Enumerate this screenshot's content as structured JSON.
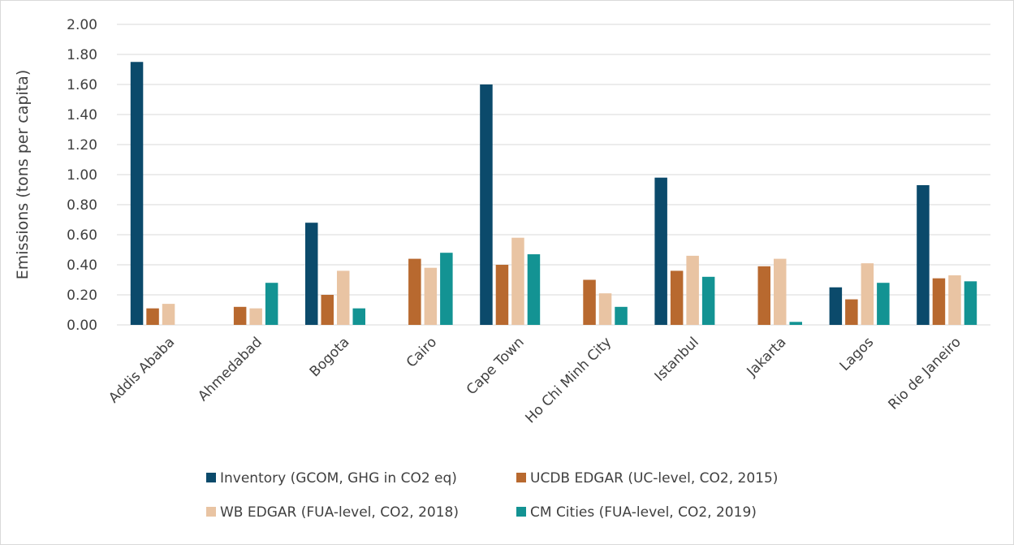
{
  "chart_data": {
    "type": "bar",
    "title": "",
    "xlabel": "",
    "ylabel": "Emissions (tons per capita)",
    "ylim": [
      0,
      2.0
    ],
    "y_ticks": [
      "0.00",
      "0.20",
      "0.40",
      "0.60",
      "0.80",
      "1.00",
      "1.20",
      "1.40",
      "1.60",
      "1.80",
      "2.00"
    ],
    "grid": true,
    "legend_position": "bottom",
    "categories": [
      "Addis Ababa",
      "Ahmedabad",
      "Bogota",
      "Cairo",
      "Cape Town",
      "Ho Chi Minh City",
      "Istanbul",
      "Jakarta",
      "Lagos",
      "Rio de Janeiro"
    ],
    "series": [
      {
        "name": "Inventory (GCOM, GHG in CO2 eq)",
        "color": "#0b4a6b",
        "values": [
          1.75,
          null,
          0.68,
          null,
          1.6,
          null,
          0.98,
          null,
          0.25,
          0.93
        ]
      },
      {
        "name": "UCDB EDGAR (UC-level, CO2, 2015)",
        "color": "#b8692f",
        "values": [
          0.11,
          0.12,
          0.2,
          0.44,
          0.4,
          0.3,
          0.36,
          0.39,
          0.17,
          0.31
        ]
      },
      {
        "name": "WB EDGAR (FUA-level, CO2, 2018)",
        "color": "#e9c4a3",
        "values": [
          0.14,
          0.11,
          0.36,
          0.38,
          0.58,
          0.21,
          0.46,
          0.44,
          0.41,
          0.33
        ]
      },
      {
        "name": "CM Cities (FUA-level, CO2, 2019)",
        "color": "#139393",
        "values": [
          null,
          0.28,
          0.11,
          0.48,
          0.47,
          0.12,
          0.32,
          0.02,
          0.28,
          0.29
        ]
      }
    ]
  }
}
